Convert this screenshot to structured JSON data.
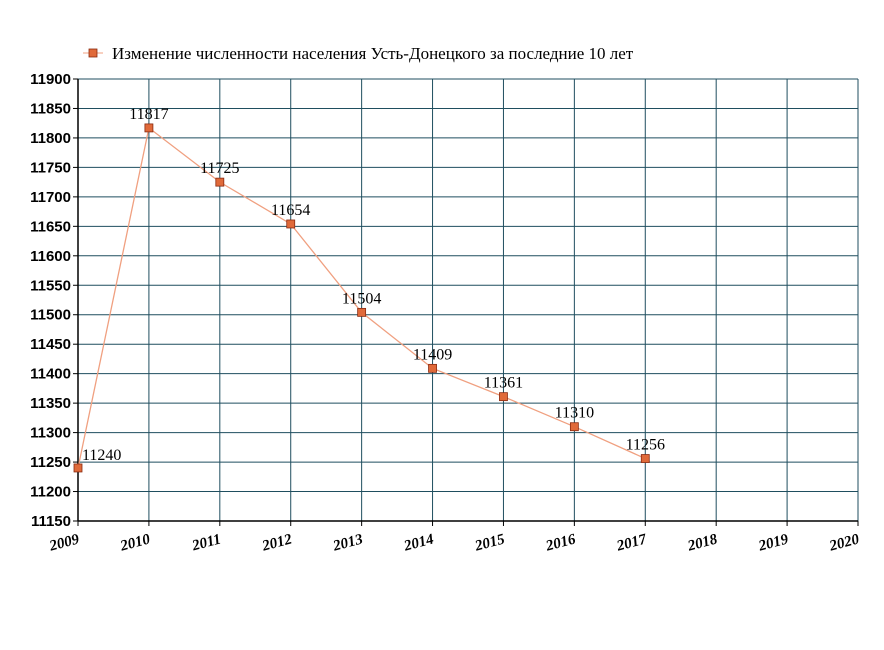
{
  "chart_data": {
    "type": "line",
    "title": "",
    "xlabel": "",
    "ylabel": "",
    "x_ticks": [
      "2009",
      "2010",
      "2011",
      "2012",
      "2013",
      "2014",
      "2015",
      "2016",
      "2017",
      "2018",
      "2019",
      "2020"
    ],
    "y_ticks": [
      "11150",
      "11200",
      "11250",
      "11300",
      "11350",
      "11400",
      "11450",
      "11500",
      "11550",
      "11600",
      "11650",
      "11700",
      "11750",
      "11800",
      "11850",
      "11900"
    ],
    "xlim": [
      2009,
      2020
    ],
    "ylim": [
      11150,
      11900
    ],
    "grid": true,
    "legend_position": "top",
    "series": [
      {
        "name": "Изменение численности населения Усть-Донецкого за последние 10 лет",
        "color": "#e06a3a",
        "line_color": "#f0a080",
        "x": [
          2009,
          2010,
          2011,
          2012,
          2013,
          2014,
          2015,
          2016,
          2017
        ],
        "values": [
          11240,
          11817,
          11725,
          11654,
          11504,
          11409,
          11361,
          11310,
          11256
        ],
        "labels": [
          "11240",
          "11817",
          "11725",
          "11654",
          "11504",
          "11409",
          "11361",
          "11310",
          "11256"
        ]
      }
    ],
    "grid_color": "#1f4e5f"
  }
}
